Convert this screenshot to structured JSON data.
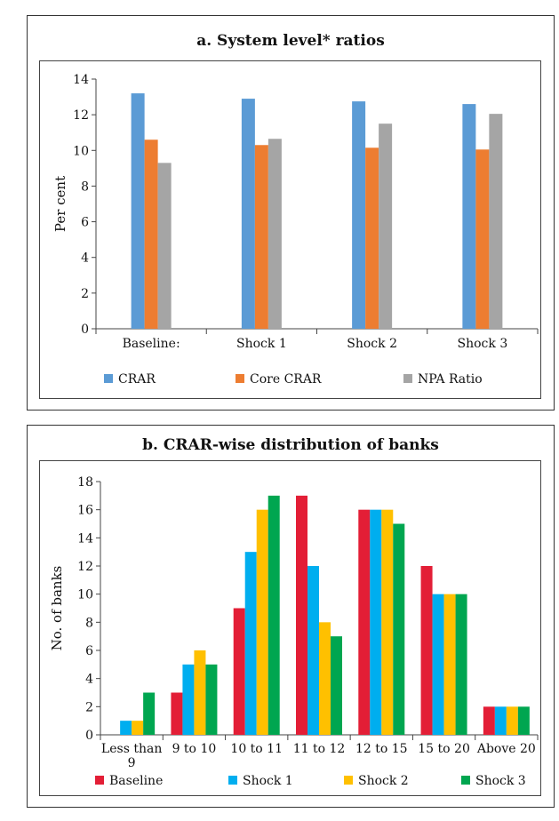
{
  "panels": {
    "a": {
      "title": "a. System level* ratios"
    },
    "b": {
      "title": "b. CRAR-wise distribution of banks"
    }
  },
  "colors": {
    "crar": "#5B9BD5",
    "core_crar": "#ED7D31",
    "npa_ratio": "#A5A5A5",
    "baseline": "#E31E36",
    "shock1": "#00AEEF",
    "shock2": "#FFC000",
    "shock3": "#00A650"
  },
  "chart_data": [
    {
      "type": "bar",
      "title": "a. System level* ratios",
      "xlabel": "",
      "ylabel": "Per cent",
      "ylim": [
        0,
        14
      ],
      "yticks": [
        0,
        2,
        4,
        6,
        8,
        10,
        12,
        14
      ],
      "categories": [
        "Baseline:",
        "Shock 1",
        "Shock 2",
        "Shock 3"
      ],
      "legend_position": "bottom",
      "series": [
        {
          "name": "CRAR",
          "values": [
            13.2,
            12.9,
            12.75,
            12.6
          ]
        },
        {
          "name": "Core CRAR",
          "values": [
            10.6,
            10.3,
            10.15,
            10.05
          ]
        },
        {
          "name": "NPA Ratio",
          "values": [
            9.3,
            10.65,
            11.5,
            12.05
          ]
        }
      ]
    },
    {
      "type": "bar",
      "title": "b. CRAR-wise distribution of banks",
      "xlabel": "",
      "ylabel": "No. of banks",
      "ylim": [
        0,
        18
      ],
      "yticks": [
        0,
        2,
        4,
        6,
        8,
        10,
        12,
        14,
        16,
        18
      ],
      "categories": [
        "Less than 9",
        "9 to 10",
        "10 to 11",
        "11 to 12",
        "12 to 15",
        "15 to 20",
        "Above 20"
      ],
      "legend_position": "bottom",
      "series": [
        {
          "name": "Baseline",
          "values": [
            0,
            3,
            9,
            17,
            16,
            12,
            2
          ]
        },
        {
          "name": "Shock 1",
          "values": [
            1,
            5,
            13,
            12,
            16,
            10,
            2
          ]
        },
        {
          "name": "Shock 2",
          "values": [
            1,
            6,
            16,
            8,
            16,
            10,
            2
          ]
        },
        {
          "name": "Shock 3",
          "values": [
            3,
            5,
            17,
            7,
            15,
            10,
            2
          ]
        }
      ]
    }
  ]
}
